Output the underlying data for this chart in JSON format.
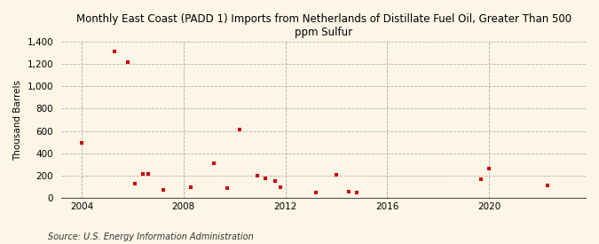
{
  "title": "Monthly East Coast (PADD 1) Imports from Netherlands of Distillate Fuel Oil, Greater Than 500\nppm Sulfur",
  "ylabel": "Thousand Barrels",
  "source": "Source: U.S. Energy Information Administration",
  "background_color": "#fdf5e6",
  "point_color": "#cc0000",
  "xlim": [
    2003.2,
    2023.8
  ],
  "ylim": [
    0,
    1400
  ],
  "yticks": [
    0,
    200,
    400,
    600,
    800,
    1000,
    1200,
    1400
  ],
  "xticks": [
    2004,
    2008,
    2012,
    2016,
    2020
  ],
  "data_x": [
    2004.0,
    2005.3,
    2005.8,
    2006.1,
    2006.4,
    2006.6,
    2007.2,
    2008.3,
    2009.2,
    2009.7,
    2010.2,
    2010.9,
    2011.2,
    2011.6,
    2011.8,
    2013.2,
    2014.0,
    2014.5,
    2014.8,
    2019.7,
    2020.0,
    2022.3
  ],
  "data_y": [
    490,
    1310,
    1220,
    130,
    215,
    215,
    70,
    100,
    310,
    90,
    615,
    200,
    175,
    155,
    100,
    50,
    205,
    55,
    45,
    165,
    260,
    115
  ]
}
